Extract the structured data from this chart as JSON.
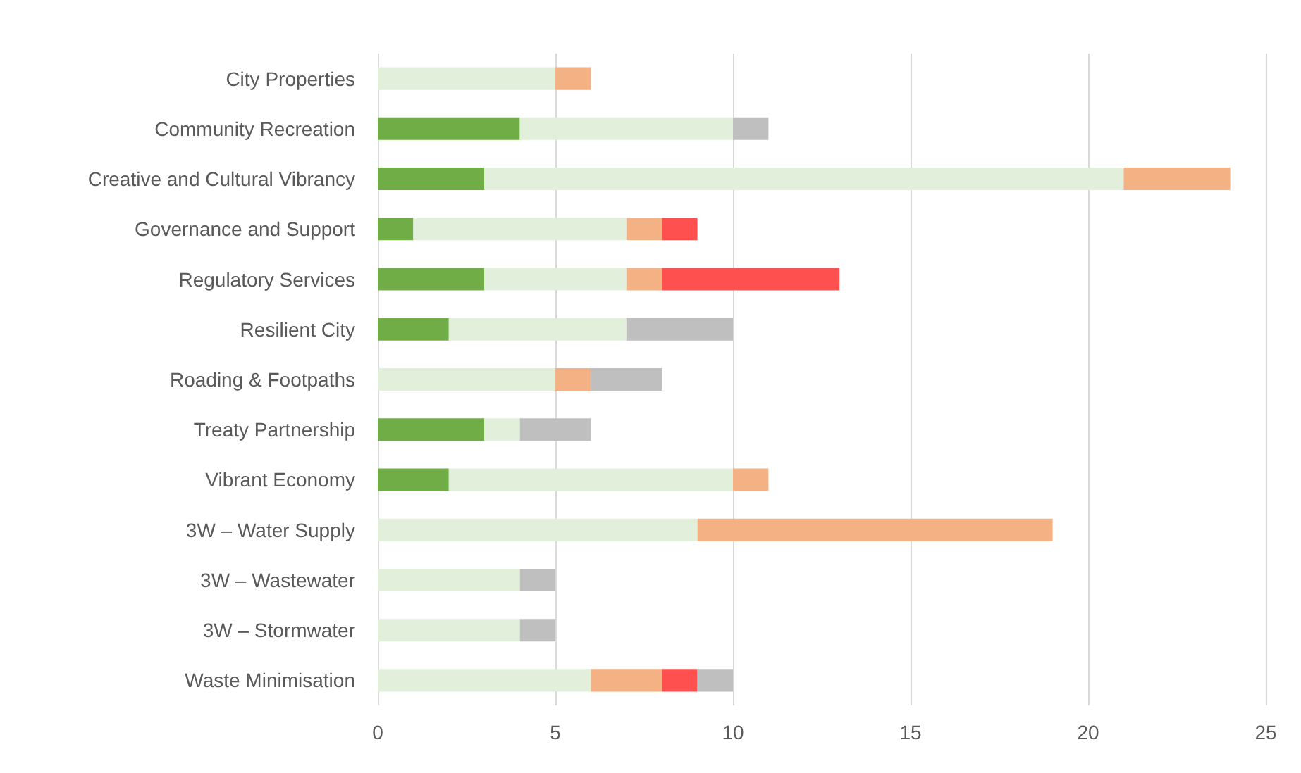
{
  "chart_data": {
    "type": "bar",
    "orientation": "horizontal",
    "stacked": true,
    "categories": [
      "City Properties",
      "Community Recreation",
      "Creative and Cultural Vibrancy",
      "Governance and Support",
      "Regulatory Services",
      "Resilient City",
      "Roading & Footpaths",
      "Treaty Partnership",
      "Vibrant Economy",
      "3W – Water Supply",
      "3W – Wastewater",
      "3W – Stormwater",
      "Waste Minimisation"
    ],
    "series": [
      {
        "color": "#70ad47",
        "values": [
          0,
          4,
          3,
          1,
          3,
          2,
          0,
          3,
          2,
          0,
          0,
          0,
          0
        ]
      },
      {
        "color": "#e2efda",
        "values": [
          5,
          6,
          18,
          6,
          4,
          5,
          5,
          1,
          8,
          9,
          4,
          4,
          6
        ]
      },
      {
        "color": "#f4b183",
        "values": [
          1,
          0,
          3,
          1,
          1,
          0,
          1,
          0,
          1,
          10,
          0,
          0,
          2
        ]
      },
      {
        "color": "#ff5050",
        "values": [
          0,
          0,
          0,
          1,
          5,
          0,
          0,
          0,
          0,
          0,
          0,
          0,
          1
        ]
      },
      {
        "color": "#bfbfbf",
        "values": [
          0,
          1,
          0,
          0,
          0,
          3,
          2,
          2,
          0,
          0,
          1,
          1,
          1
        ]
      }
    ],
    "xlim": [
      0,
      25
    ],
    "xticks": [
      0,
      5,
      10,
      15,
      20,
      25
    ],
    "grid": "x"
  }
}
